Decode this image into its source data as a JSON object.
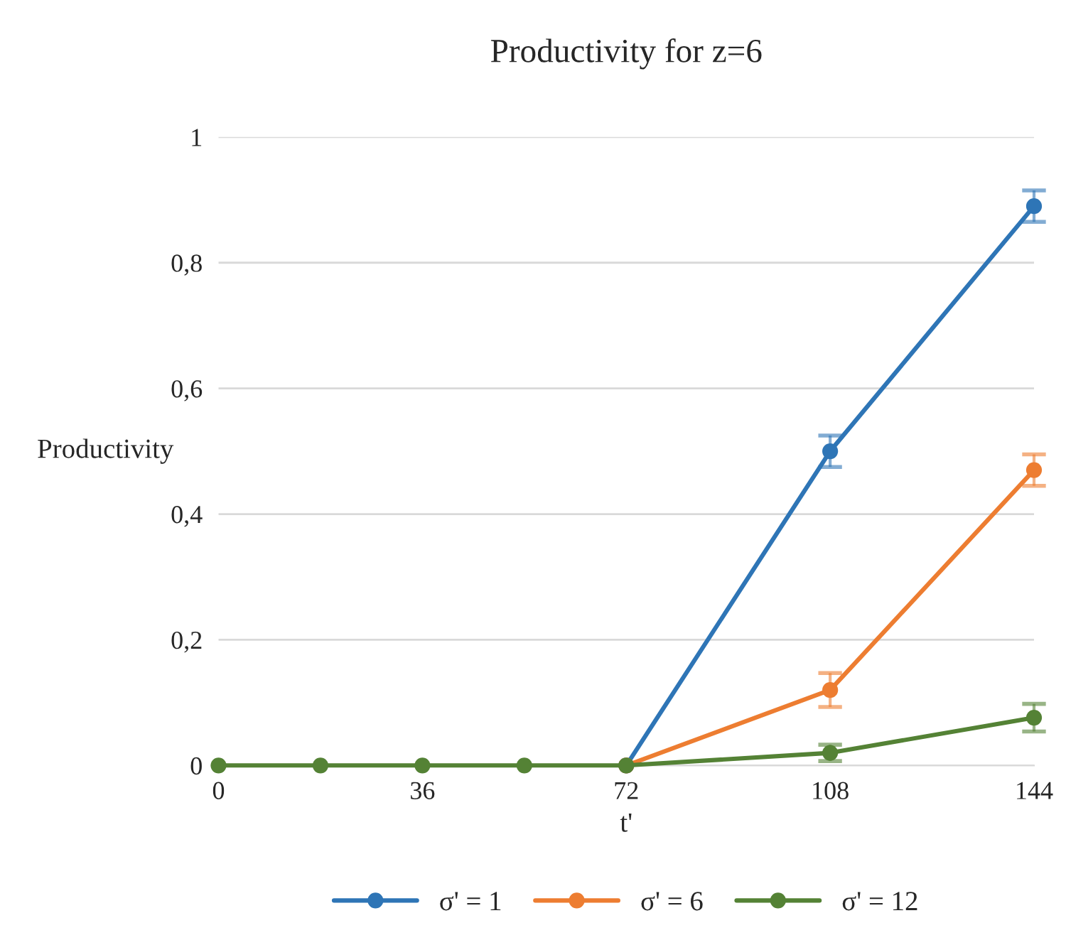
{
  "chart_data": {
    "type": "line",
    "title": "Productivity for z=6",
    "xlabel": "t'",
    "ylabel": "Productivity",
    "x": [
      0,
      18,
      36,
      54,
      72,
      108,
      144
    ],
    "series": [
      {
        "name": "σ' = 1",
        "color": "#2e75b6",
        "values": [
          null,
          null,
          null,
          null,
          0,
          0.5,
          0.89
        ],
        "errors": [
          null,
          null,
          null,
          null,
          null,
          0.025,
          0.025
        ]
      },
      {
        "name": "σ' = 6",
        "color": "#ed7d31",
        "values": [
          null,
          null,
          null,
          null,
          0,
          0.12,
          0.47
        ],
        "errors": [
          null,
          null,
          null,
          null,
          null,
          0.027,
          0.025
        ]
      },
      {
        "name": "σ' = 12",
        "color": "#548235",
        "values": [
          0,
          0,
          0,
          0,
          0,
          0.02,
          0.076
        ],
        "errors": [
          null,
          null,
          null,
          null,
          null,
          0.013,
          0.022
        ]
      }
    ],
    "xlim": [
      0,
      144
    ],
    "xticks": [
      0,
      36,
      72,
      108,
      144
    ],
    "ylim": [
      0,
      1
    ],
    "yticks": [
      0,
      {
        "value": 0.2,
        "label": "0,2"
      },
      {
        "value": 0.4,
        "label": "0,4"
      },
      {
        "value": 0.6,
        "label": "0,6"
      },
      {
        "value": 0.8,
        "label": "0,8"
      },
      1
    ],
    "grid": "y",
    "legend": "bottom",
    "marker": "circle",
    "line_style": "solid"
  }
}
